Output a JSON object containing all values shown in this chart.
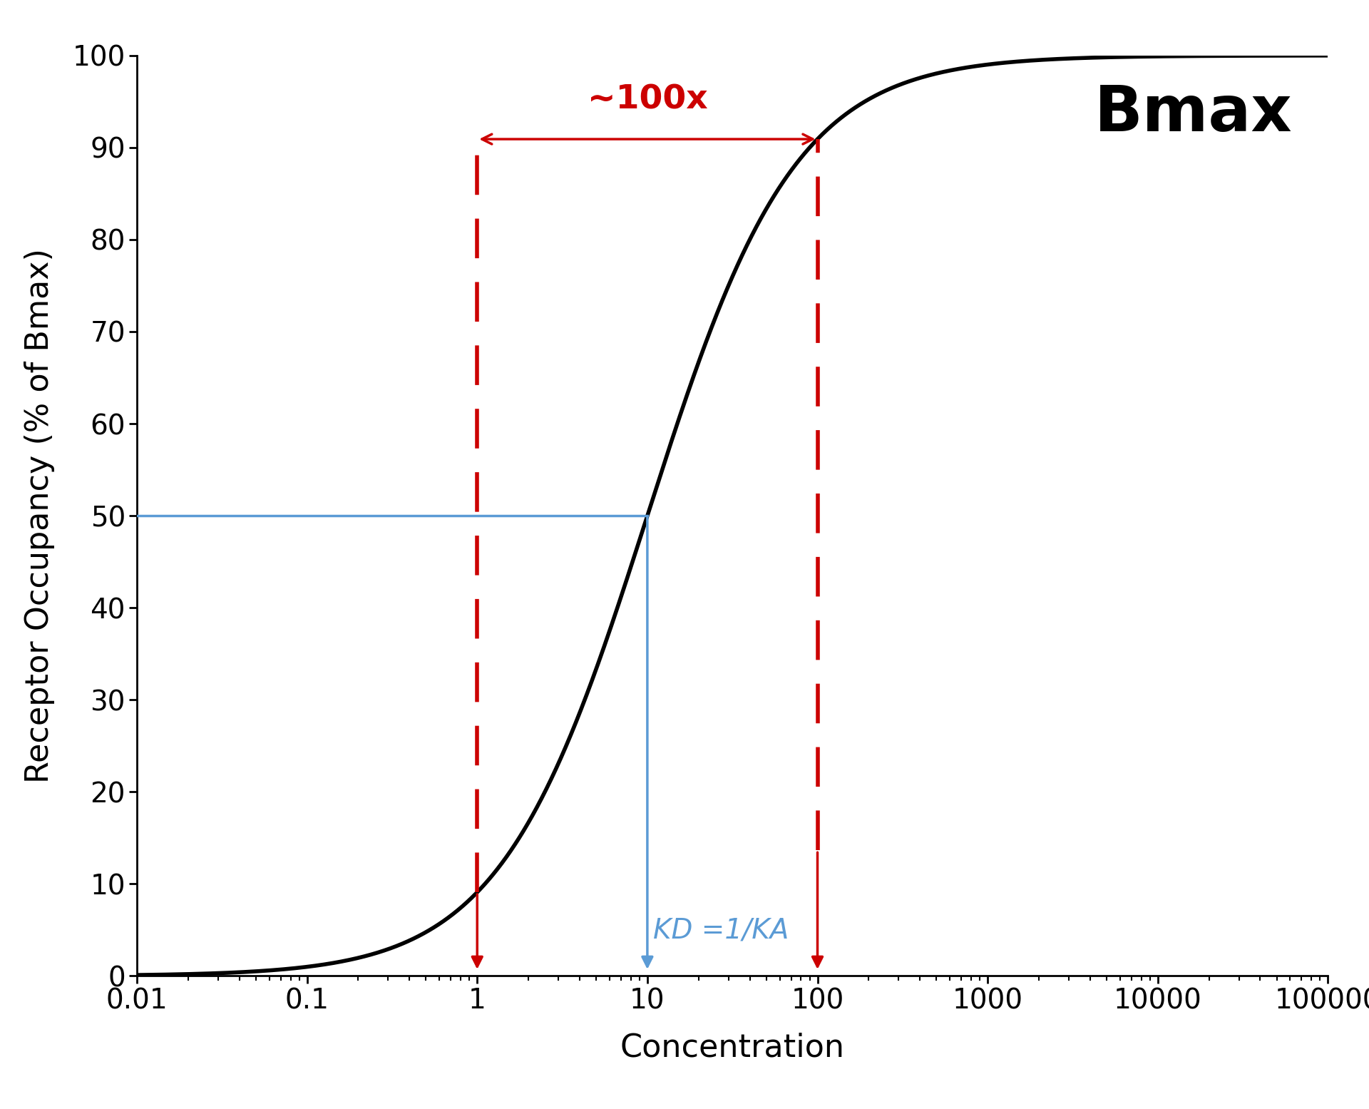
{
  "title": "Bmax",
  "xlabel": "Concentration",
  "ylabel": "Receptor Occupancy (% of Bmax)",
  "xlim_log": [
    -2,
    5
  ],
  "ylim": [
    0,
    100
  ],
  "kd": 10,
  "hill": 1,
  "bmax": 100,
  "annotation_100x": "~100x",
  "annotation_kd": "KD =1/KA",
  "curve_color": "#000000",
  "blue_color": "#5b9bd5",
  "red_color": "#cc0000",
  "background_color": "#ffffff",
  "title_fontsize": 64,
  "axis_label_fontsize": 32,
  "tick_fontsize": 28,
  "annotation_fontsize": 34,
  "kd_fontsize": 28,
  "curve_linewidth": 4.0,
  "blue_linewidth": 2.5,
  "arrow_linewidth": 2.5,
  "dashed_linewidth": 4.0
}
